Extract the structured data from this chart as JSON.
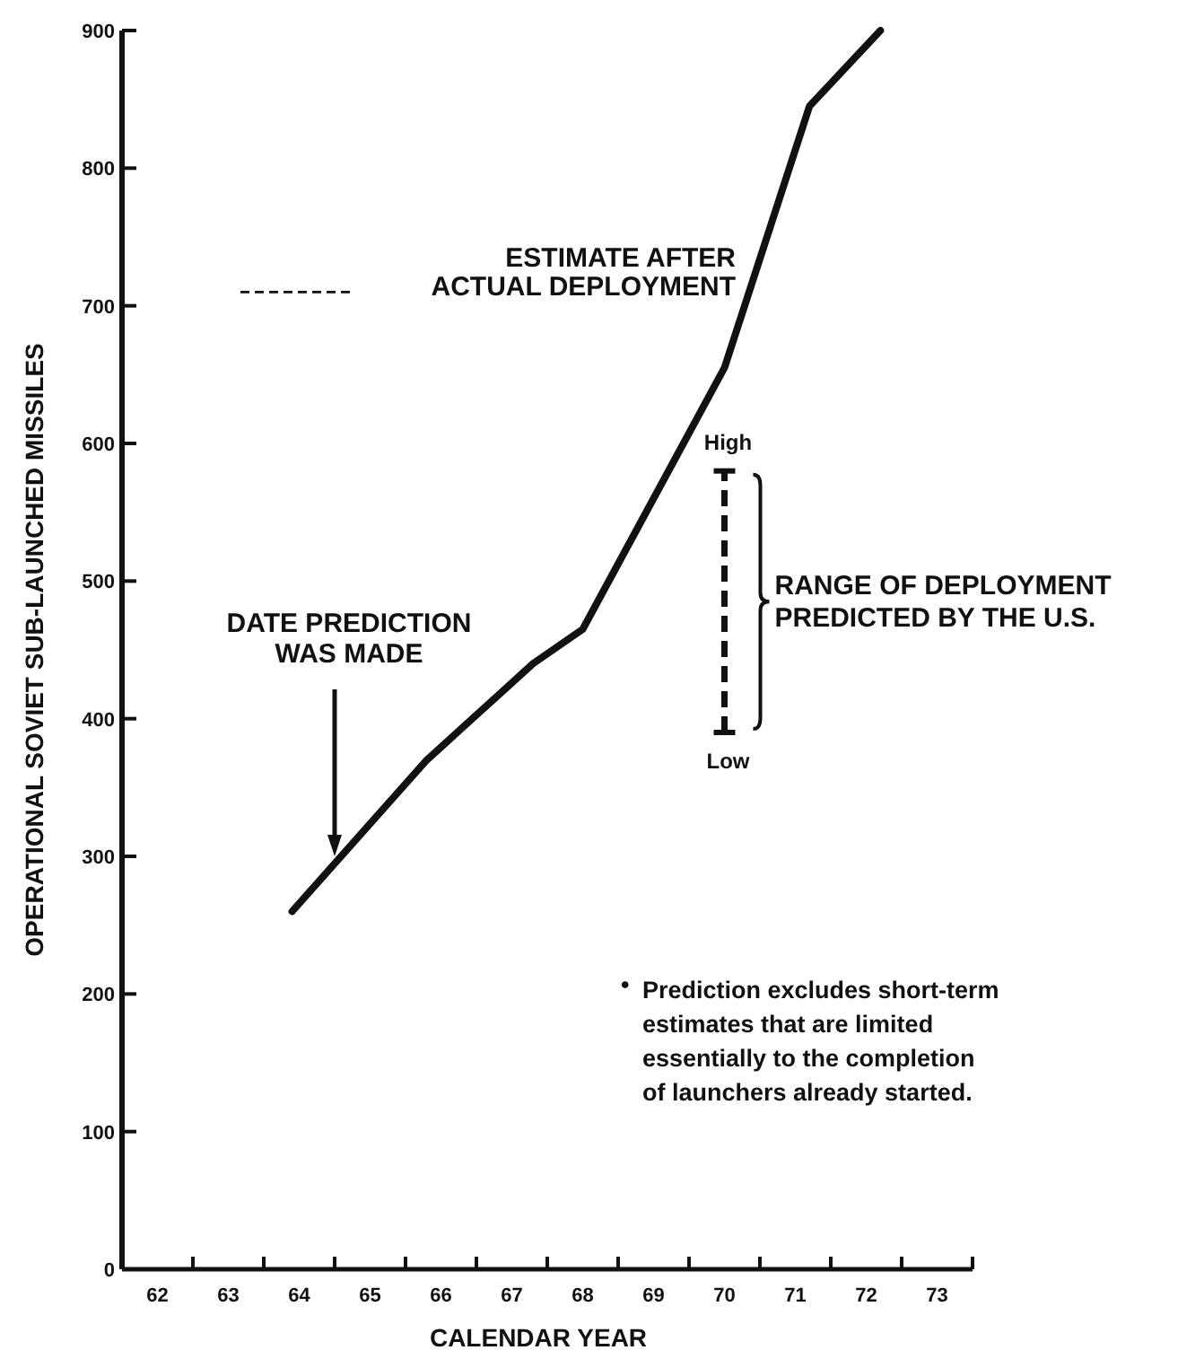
{
  "chart_data": {
    "type": "line",
    "xlabel": "CALENDAR YEAR",
    "ylabel": "OPERATIONAL SOVIET SUB-LAUNCHED MISSILES",
    "xlim": [
      61.5,
      73.5
    ],
    "xticks": [
      {
        "value": 62,
        "label": "62"
      },
      {
        "value": 62.5,
        "label": null
      },
      {
        "value": 63,
        "label": "63"
      },
      {
        "value": 63.5,
        "label": null
      },
      {
        "value": 64,
        "label": "64"
      },
      {
        "value": 64.5,
        "label": null
      },
      {
        "value": 65,
        "label": "65"
      },
      {
        "value": 65.5,
        "label": null
      },
      {
        "value": 66,
        "label": "66"
      },
      {
        "value": 66.5,
        "label": null
      },
      {
        "value": 67,
        "label": "67"
      },
      {
        "value": 67.5,
        "label": null
      },
      {
        "value": 68,
        "label": "68"
      },
      {
        "value": 68.5,
        "label": null
      },
      {
        "value": 69,
        "label": "69"
      },
      {
        "value": 69.5,
        "label": null
      },
      {
        "value": 70,
        "label": "70"
      },
      {
        "value": 70.5,
        "label": null
      },
      {
        "value": 71,
        "label": "71"
      },
      {
        "value": 71.5,
        "label": null
      },
      {
        "value": 72,
        "label": "72"
      },
      {
        "value": 72.5,
        "label": null
      },
      {
        "value": 73,
        "label": "73"
      },
      {
        "value": 73.5,
        "label": null
      }
    ],
    "ylim": [
      0,
      900
    ],
    "yticks": [
      0,
      100,
      200,
      300,
      400,
      500,
      600,
      700,
      800,
      900
    ],
    "series": [
      {
        "name": "ESTIMATE AFTER ACTUAL DEPLOYMENT",
        "color": "#111111",
        "line_style": "solid",
        "x": [
          63.9,
          65.8,
          67.3,
          68.0,
          70.0,
          71.2,
          72.2
        ],
        "values": [
          260,
          370,
          440,
          465,
          655,
          845,
          900
        ]
      },
      {
        "color": "#111111",
        "line_style": "dashed",
        "x": [
          70,
          70
        ],
        "values": [
          390,
          580
        ]
      }
    ],
    "annotations": [
      "DATE PREDICTION WAS MADE",
      "High",
      "Low",
      "RANGE OF DEPLOYMENT PREDICTED BY THE U.S.",
      "• Prediction excludes short-term estimates that are limited essentially to the completion of launchers already started."
    ]
  }
}
